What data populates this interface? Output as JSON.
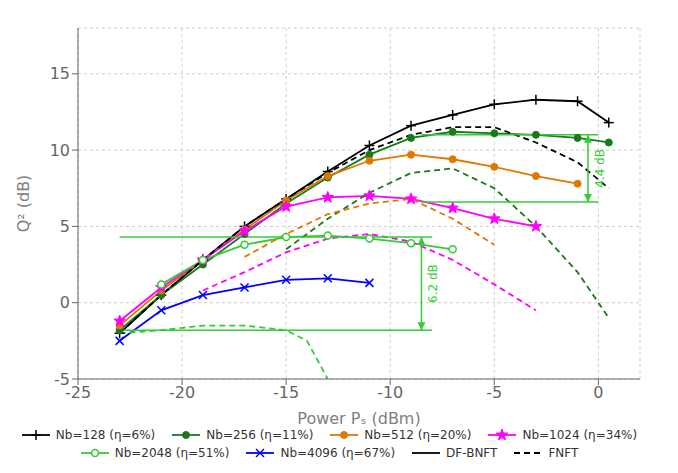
{
  "chart_data": {
    "type": "line",
    "xlabel": "Power Pₛ (dBm)",
    "ylabel": "Q² (dB)",
    "xlim": [
      -25,
      2
    ],
    "ylim": [
      -5,
      18
    ],
    "xticks": [
      -25,
      -20,
      -15,
      -10,
      -5,
      0
    ],
    "yticks": [
      -5,
      0,
      5,
      10,
      15
    ],
    "grid": true,
    "legend": "bottom",
    "series": [
      {
        "name": "Nb=128 (η=6%)",
        "color": "#000000",
        "line_style": "solid",
        "marker": "plus",
        "x": [
          -23,
          -21,
          -19,
          -17,
          -15,
          -13,
          -11,
          -9,
          -7,
          -5,
          -3,
          -1,
          0.5
        ],
        "values": [
          -2.0,
          0.5,
          2.8,
          5.0,
          6.8,
          8.6,
          10.3,
          11.6,
          12.3,
          13.0,
          13.3,
          13.2,
          11.8
        ]
      },
      {
        "name": "Nb=256 (η=11%)",
        "color": "#1a7a1a",
        "line_style": "solid",
        "marker": "circle",
        "x": [
          -23,
          -21,
          -19,
          -17,
          -15,
          -13,
          -11,
          -9,
          -7,
          -5,
          -3,
          -1,
          0.5
        ],
        "values": [
          -1.8,
          0.5,
          2.5,
          4.5,
          6.5,
          8.2,
          9.7,
          10.8,
          11.2,
          11.1,
          11.0,
          10.8,
          10.5
        ]
      },
      {
        "name": "Nb=512 (η=20%)",
        "color": "#e07800",
        "line_style": "solid",
        "marker": "circle",
        "x": [
          -23,
          -21,
          -19,
          -17,
          -15,
          -13,
          -11,
          -9,
          -7,
          -5,
          -3,
          -1
        ],
        "values": [
          -1.5,
          0.8,
          2.8,
          4.8,
          6.7,
          8.3,
          9.3,
          9.7,
          9.4,
          8.9,
          8.3,
          7.8
        ]
      },
      {
        "name": "Nb=1024 (η=34%)",
        "color": "#ff00ff",
        "line_style": "solid",
        "marker": "star",
        "x": [
          -23,
          -21,
          -19,
          -17,
          -15,
          -13,
          -11,
          -9,
          -7,
          -5,
          -3
        ],
        "values": [
          -1.2,
          1.0,
          2.8,
          4.7,
          6.3,
          6.9,
          7.0,
          6.8,
          6.2,
          5.5,
          5.0
        ]
      },
      {
        "name": "Nb=2048 (η=51%)",
        "color": "#33cc33",
        "line_style": "solid",
        "marker": "open_circle",
        "x": [
          -21,
          -19,
          -17,
          -15,
          -13,
          -11,
          -9,
          -7
        ],
        "values": [
          1.2,
          2.8,
          3.8,
          4.3,
          4.4,
          4.2,
          3.9,
          3.5
        ]
      },
      {
        "name": "Nb=4096 (η=67%)",
        "color": "#0000ff",
        "line_style": "solid",
        "marker": "x",
        "x": [
          -23,
          -21,
          -19,
          -17,
          -15,
          -13,
          -11
        ],
        "values": [
          -2.5,
          -0.5,
          0.5,
          1.0,
          1.5,
          1.6,
          1.3
        ]
      },
      {
        "color": "#000000",
        "line_style": "dashed",
        "marker": "none",
        "x": [
          -23,
          -21,
          -19,
          -17,
          -15,
          -13,
          -11,
          -9,
          -7,
          -5,
          -3,
          -1,
          0.5
        ],
        "values": [
          -2.0,
          0.5,
          2.8,
          5.0,
          6.8,
          8.5,
          10.0,
          11.0,
          11.5,
          11.5,
          10.5,
          9.2,
          7.5
        ]
      },
      {
        "color": "#1a7a1a",
        "line_style": "dashed",
        "marker": "none",
        "x": [
          -15,
          -13,
          -11,
          -9,
          -7,
          -5,
          -3,
          -1,
          0.5
        ],
        "values": [
          3.5,
          5.5,
          7.2,
          8.5,
          8.8,
          7.5,
          5.0,
          2.0,
          -1.0
        ]
      },
      {
        "color": "#e07800",
        "line_style": "dashed",
        "marker": "none",
        "x": [
          -17,
          -15,
          -13,
          -11,
          -9,
          -7,
          -5
        ],
        "values": [
          3.0,
          4.5,
          5.8,
          6.5,
          6.8,
          5.5,
          3.8
        ]
      },
      {
        "color": "#ff00ff",
        "line_style": "dashed",
        "marker": "none",
        "x": [
          -19,
          -17,
          -15,
          -13,
          -11,
          -9,
          -7,
          -5,
          -3
        ],
        "values": [
          0.8,
          2.0,
          3.3,
          4.2,
          4.5,
          4.0,
          2.8,
          1.2,
          -0.5
        ]
      },
      {
        "color": "#33cc33",
        "line_style": "dashed",
        "marker": "none",
        "x": [
          -23,
          -21,
          -19,
          -17,
          -15,
          -14,
          -13
        ],
        "values": [
          -2.0,
          -1.8,
          -1.5,
          -1.5,
          -1.8,
          -2.5,
          -5.0
        ]
      }
    ],
    "legend_lines": [
      {
        "name": "DF-BNFT",
        "color": "#000000",
        "line_style": "solid"
      },
      {
        "name": "FNFT",
        "color": "#000000",
        "line_style": "dashed"
      }
    ],
    "annotations": [
      {
        "text": "6.2 dB",
        "color": "#33cc33",
        "x": -8.5,
        "y_top": 4.3,
        "y_bottom": -1.8,
        "x_start": -23.0,
        "x_end": -8.0
      },
      {
        "text": "4.4 dB",
        "color": "#33cc33",
        "x": -0.5,
        "y_top": 11.0,
        "y_bottom": 6.6,
        "x_start": -8.5,
        "x_end": 0
      }
    ]
  }
}
